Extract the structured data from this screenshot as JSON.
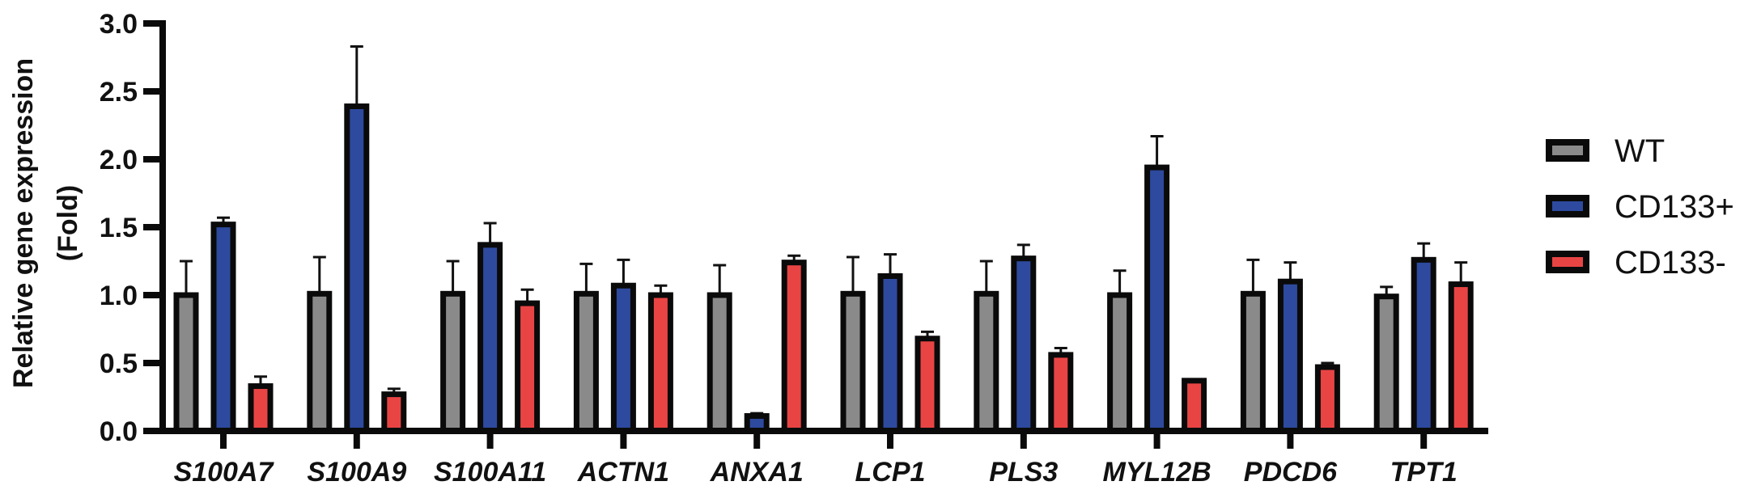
{
  "chart_data": {
    "type": "bar",
    "title": "",
    "xlabel": "",
    "ylabel": "Relative gene expression",
    "ylabel_line2": "(Fold)",
    "ylim": [
      0,
      3.0
    ],
    "yticks": [
      "0.0",
      "0.5",
      "1.0",
      "1.5",
      "2.0",
      "2.5",
      "3.0"
    ],
    "ytick_values": [
      0,
      0.5,
      1.0,
      1.5,
      2.0,
      2.5,
      3.0
    ],
    "grid": false,
    "legend_position": "right",
    "categories": [
      "S100A7",
      "S100A9",
      "S100A11",
      "ACTN1",
      "ANXA1",
      "LCP1",
      "PLS3",
      "MYL12B",
      "PDCD6",
      "TPT1"
    ],
    "series": [
      {
        "name": "WT",
        "color": "#8a8a8a",
        "values": [
          1.0,
          1.01,
          1.01,
          1.01,
          1.0,
          1.01,
          1.01,
          1.0,
          1.01,
          0.99
        ],
        "error": [
          0.25,
          0.27,
          0.24,
          0.22,
          0.22,
          0.27,
          0.24,
          0.18,
          0.25,
          0.07
        ]
      },
      {
        "name": "CD133+",
        "color": "#2e4a9e",
        "values": [
          1.52,
          2.39,
          1.37,
          1.07,
          0.11,
          1.14,
          1.27,
          1.94,
          1.1,
          1.26
        ],
        "error": [
          0.05,
          0.44,
          0.16,
          0.19,
          0.02,
          0.16,
          0.1,
          0.23,
          0.14,
          0.12
        ]
      },
      {
        "name": "CD133-",
        "color": "#e94444",
        "values": [
          0.33,
          0.27,
          0.94,
          1.0,
          1.24,
          0.68,
          0.56,
          0.37,
          0.47,
          1.08
        ],
        "error": [
          0.07,
          0.04,
          0.1,
          0.07,
          0.05,
          0.05,
          0.05,
          0.01,
          0.03,
          0.16
        ]
      }
    ]
  }
}
